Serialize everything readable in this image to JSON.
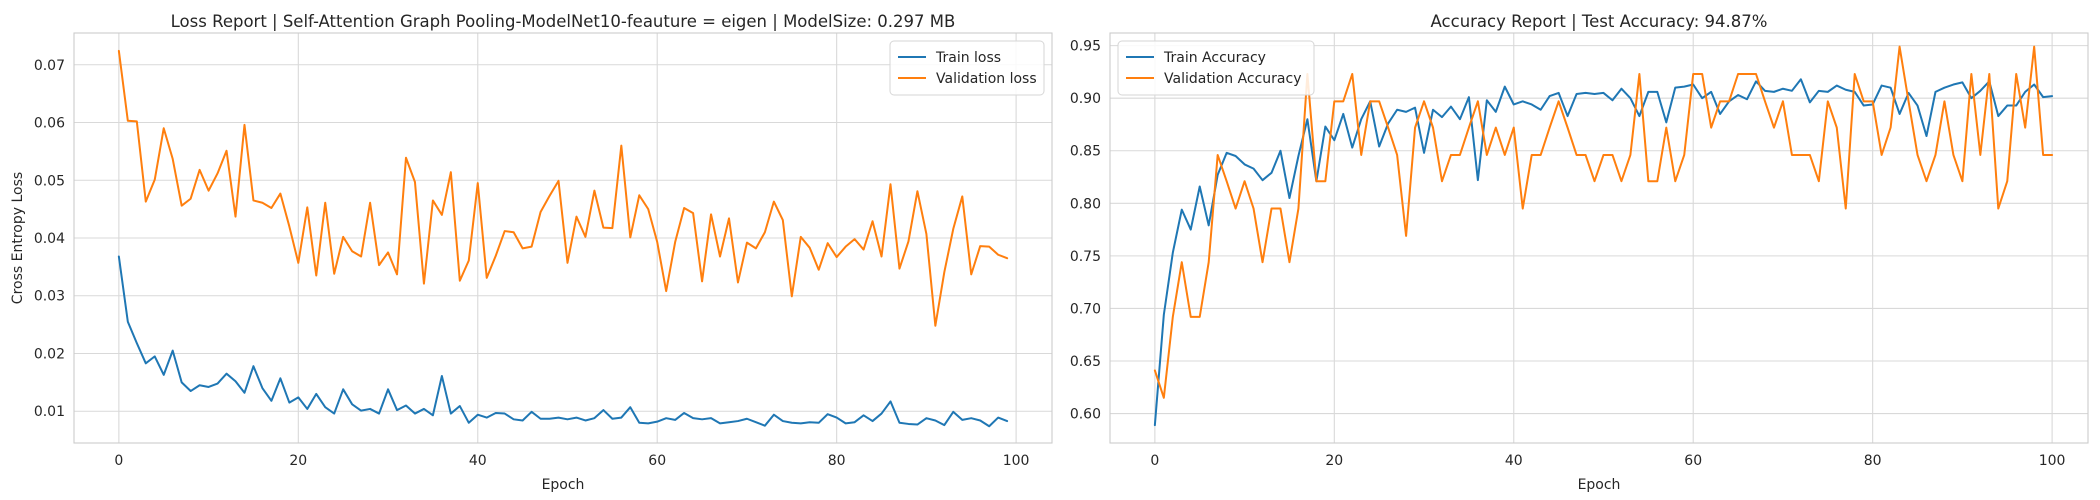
{
  "colors": {
    "train": "#1f77b4",
    "validation": "#ff7f0e",
    "grid": "#d9d9d9",
    "frame": "#cccccc"
  },
  "chart_data": [
    {
      "type": "line",
      "title": "Loss Report | Self-Attention Graph Pooling-ModelNet10-feauture = eigen | ModelSize: 0.297 MB",
      "xlabel": "Epoch",
      "ylabel": "Cross Entropy Loss",
      "xlim": [
        -5,
        104
      ],
      "ylim": [
        0.0045,
        0.0755
      ],
      "xticks": [
        0,
        20,
        40,
        60,
        80,
        100
      ],
      "yticks": [
        0.01,
        0.02,
        0.03,
        0.04,
        0.05,
        0.06,
        0.07
      ],
      "ytick_labels": [
        "0.01",
        "0.02",
        "0.03",
        "0.04",
        "0.05",
        "0.06",
        "0.07"
      ],
      "grid": true,
      "legend": "top-right",
      "series": [
        {
          "name": "Train loss",
          "color_key": "train",
          "values": [
            0.0368,
            0.0255,
            0.0218,
            0.0183,
            0.0195,
            0.0163,
            0.0205,
            0.015,
            0.0135,
            0.0145,
            0.0142,
            0.0148,
            0.0165,
            0.0152,
            0.0132,
            0.0178,
            0.014,
            0.0118,
            0.0157,
            0.0115,
            0.0124,
            0.0104,
            0.013,
            0.0107,
            0.0096,
            0.0138,
            0.0112,
            0.0101,
            0.0104,
            0.0096,
            0.0138,
            0.0102,
            0.011,
            0.0096,
            0.0104,
            0.0093,
            0.0161,
            0.0096,
            0.0109,
            0.008,
            0.0094,
            0.0089,
            0.0097,
            0.0096,
            0.0086,
            0.0084,
            0.0099,
            0.0087,
            0.0087,
            0.0089,
            0.0086,
            0.0089,
            0.0084,
            0.0088,
            0.0102,
            0.0087,
            0.0089,
            0.0107,
            0.008,
            0.0079,
            0.0082,
            0.0088,
            0.0085,
            0.0097,
            0.0088,
            0.0086,
            0.0088,
            0.0079,
            0.0081,
            0.0083,
            0.0087,
            0.0081,
            0.0075,
            0.0094,
            0.0083,
            0.008,
            0.0079,
            0.0081,
            0.008,
            0.0095,
            0.0089,
            0.0079,
            0.0081,
            0.0093,
            0.0083,
            0.0096,
            0.0117,
            0.008,
            0.0078,
            0.0077,
            0.0088,
            0.0084,
            0.0076,
            0.0099,
            0.0085,
            0.0088,
            0.0084,
            0.0074,
            0.0089,
            0.0083
          ]
        },
        {
          "name": "Validation loss",
          "color_key": "validation",
          "values": [
            0.0724,
            0.0603,
            0.0602,
            0.0463,
            0.0501,
            0.059,
            0.0537,
            0.0456,
            0.0468,
            0.0518,
            0.0482,
            0.0512,
            0.0551,
            0.0437,
            0.0596,
            0.0465,
            0.0461,
            0.0452,
            0.0477,
            0.042,
            0.0357,
            0.0453,
            0.0335,
            0.0461,
            0.0338,
            0.0402,
            0.0377,
            0.0368,
            0.0461,
            0.0353,
            0.0375,
            0.0337,
            0.0539,
            0.0497,
            0.0321,
            0.0465,
            0.044,
            0.0514,
            0.0326,
            0.0361,
            0.0495,
            0.0331,
            0.0369,
            0.0412,
            0.041,
            0.0382,
            0.0385,
            0.0445,
            0.0473,
            0.0499,
            0.0357,
            0.0437,
            0.0402,
            0.0482,
            0.0418,
            0.0417,
            0.056,
            0.0401,
            0.0474,
            0.045,
            0.0393,
            0.0308,
            0.0393,
            0.0452,
            0.0443,
            0.0325,
            0.0441,
            0.0368,
            0.0434,
            0.0323,
            0.0392,
            0.0382,
            0.041,
            0.0463,
            0.0431,
            0.0299,
            0.0402,
            0.0383,
            0.0345,
            0.0391,
            0.0367,
            0.0385,
            0.0398,
            0.038,
            0.0429,
            0.0368,
            0.0493,
            0.0347,
            0.0394,
            0.0481,
            0.0407,
            0.0248,
            0.0341,
            0.0416,
            0.0472,
            0.0337,
            0.0386,
            0.0385,
            0.0371,
            0.0365
          ]
        }
      ]
    },
    {
      "type": "line",
      "title": "Accuracy Report | Test Accuracy: 94.87%",
      "xlabel": "Epoch",
      "ylabel": "",
      "xlim": [
        -5,
        104
      ],
      "ylim": [
        0.572,
        0.962
      ],
      "xticks": [
        0,
        20,
        40,
        60,
        80,
        100
      ],
      "yticks": [
        0.6,
        0.65,
        0.7,
        0.75,
        0.8,
        0.85,
        0.9,
        0.95
      ],
      "ytick_labels": [
        "0.60",
        "0.65",
        "0.70",
        "0.75",
        "0.80",
        "0.85",
        "0.90",
        "0.95"
      ],
      "grid": true,
      "legend": "top-left",
      "series": [
        {
          "name": "Train Accuracy",
          "color_key": "train",
          "values": [
            0.589,
            0.694,
            0.753,
            0.794,
            0.775,
            0.816,
            0.779,
            0.827,
            0.848,
            0.845,
            0.837,
            0.833,
            0.822,
            0.829,
            0.85,
            0.805,
            0.845,
            0.88,
            0.821,
            0.873,
            0.86,
            0.885,
            0.853,
            0.88,
            0.897,
            0.854,
            0.876,
            0.889,
            0.887,
            0.891,
            0.848,
            0.889,
            0.882,
            0.892,
            0.88,
            0.901,
            0.822,
            0.898,
            0.887,
            0.911,
            0.894,
            0.897,
            0.894,
            0.889,
            0.902,
            0.905,
            0.883,
            0.904,
            0.905,
            0.904,
            0.905,
            0.898,
            0.909,
            0.9,
            0.883,
            0.906,
            0.906,
            0.877,
            0.91,
            0.911,
            0.913,
            0.9,
            0.906,
            0.885,
            0.897,
            0.903,
            0.899,
            0.916,
            0.907,
            0.906,
            0.909,
            0.907,
            0.918,
            0.896,
            0.907,
            0.906,
            0.912,
            0.908,
            0.906,
            0.893,
            0.894,
            0.912,
            0.91,
            0.885,
            0.905,
            0.893,
            0.864,
            0.906,
            0.91,
            0.913,
            0.915,
            0.9,
            0.907,
            0.916,
            0.883,
            0.893,
            0.893,
            0.906,
            0.913,
            0.901,
            0.902
          ]
        },
        {
          "name": "Validation Accuracy",
          "color_key": "validation",
          "values": [
            0.641,
            0.615,
            0.692,
            0.744,
            0.692,
            0.692,
            0.744,
            0.846,
            0.821,
            0.795,
            0.821,
            0.795,
            0.744,
            0.795,
            0.795,
            0.744,
            0.795,
            0.923,
            0.821,
            0.821,
            0.897,
            0.897,
            0.923,
            0.846,
            0.897,
            0.897,
            0.872,
            0.846,
            0.769,
            0.872,
            0.897,
            0.872,
            0.821,
            0.846,
            0.846,
            0.872,
            0.897,
            0.846,
            0.872,
            0.846,
            0.872,
            0.795,
            0.846,
            0.846,
            0.872,
            0.897,
            0.872,
            0.846,
            0.846,
            0.821,
            0.846,
            0.846,
            0.821,
            0.846,
            0.923,
            0.821,
            0.821,
            0.872,
            0.821,
            0.846,
            0.923,
            0.923,
            0.872,
            0.897,
            0.897,
            0.923,
            0.923,
            0.923,
            0.897,
            0.872,
            0.897,
            0.846,
            0.846,
            0.846,
            0.821,
            0.897,
            0.872,
            0.795,
            0.923,
            0.897,
            0.897,
            0.846,
            0.872,
            0.949,
            0.897,
            0.846,
            0.821,
            0.846,
            0.897,
            0.846,
            0.821,
            0.923,
            0.846,
            0.923,
            0.795,
            0.821,
            0.923,
            0.872,
            0.949,
            0.846,
            0.846
          ]
        }
      ]
    }
  ]
}
